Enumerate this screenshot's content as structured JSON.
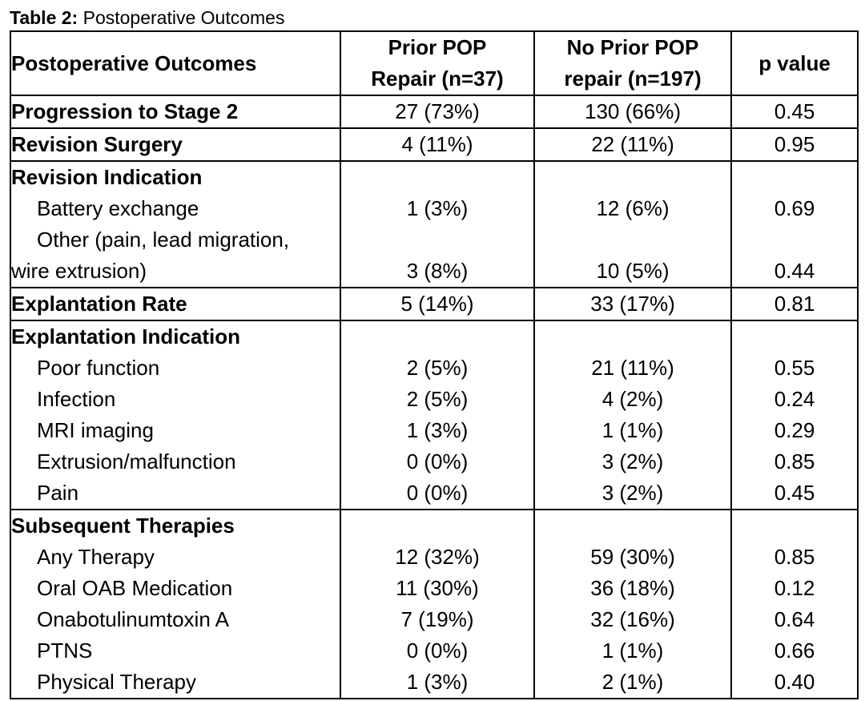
{
  "caption": {
    "label": "Table 2:",
    "title": "Postoperative Outcomes"
  },
  "header": {
    "col1": "Postoperative Outcomes",
    "col2_line1": "Prior POP",
    "col2_line2": "Repair (n=37)",
    "col3_line1": "No Prior POP",
    "col3_line2": "repair (n=197)",
    "col4": "p value"
  },
  "rows": {
    "progression": {
      "label": "Progression to Stage 2",
      "prior": "27 (73%)",
      "no_prior": "130 (66%)",
      "p": "0.45"
    },
    "revision_surgery": {
      "label": "Revision Surgery",
      "prior": "4 (11%)",
      "no_prior": "22 (11%)",
      "p": "0.95"
    },
    "revision_indication": {
      "label": "Revision Indication",
      "battery": {
        "label": "Battery exchange",
        "prior": "1 (3%)",
        "no_prior": "12 (6%)",
        "p": "0.69"
      },
      "other": {
        "label_line1": "Other (pain, lead migration,",
        "label_line2": "wire extrusion)",
        "prior": "3 (8%)",
        "no_prior": "10 (5%)",
        "p": "0.44"
      }
    },
    "explantation_rate": {
      "label": "Explantation Rate",
      "prior": "5 (14%)",
      "no_prior": "33 (17%)",
      "p": "0.81"
    },
    "explantation_indication": {
      "label": "Explantation Indication",
      "poor_function": {
        "label": "Poor function",
        "prior": "2 (5%)",
        "no_prior": "21 (11%)",
        "p": "0.55"
      },
      "infection": {
        "label": "Infection",
        "prior": "2 (5%)",
        "no_prior": "4 (2%)",
        "p": "0.24"
      },
      "mri": {
        "label": "MRI imaging",
        "prior": "1 (3%)",
        "no_prior": "1 (1%)",
        "p": "0.29"
      },
      "extrusion": {
        "label": "Extrusion/malfunction",
        "prior": "0 (0%)",
        "no_prior": "3 (2%)",
        "p": "0.85"
      },
      "pain": {
        "label": "Pain",
        "prior": "0 (0%)",
        "no_prior": "3 (2%)",
        "p": "0.45"
      }
    },
    "subsequent": {
      "label": "Subsequent Therapies",
      "any": {
        "label": "Any Therapy",
        "prior": "12 (32%)",
        "no_prior": "59 (30%)",
        "p": "0.85"
      },
      "oral": {
        "label": "Oral OAB Medication",
        "prior": "11 (30%)",
        "no_prior": "36 (18%)",
        "p": "0.12"
      },
      "onabot": {
        "label": "Onabotulinumtoxin A",
        "prior": "7 (19%)",
        "no_prior": "32 (16%)",
        "p": "0.64"
      },
      "ptns": {
        "label": "PTNS",
        "prior": "0 (0%)",
        "no_prior": "1 (1%)",
        "p": "0.66"
      },
      "pt": {
        "label": "Physical Therapy",
        "prior": "1 (3%)",
        "no_prior": "2 (1%)",
        "p": "0.40"
      }
    }
  }
}
